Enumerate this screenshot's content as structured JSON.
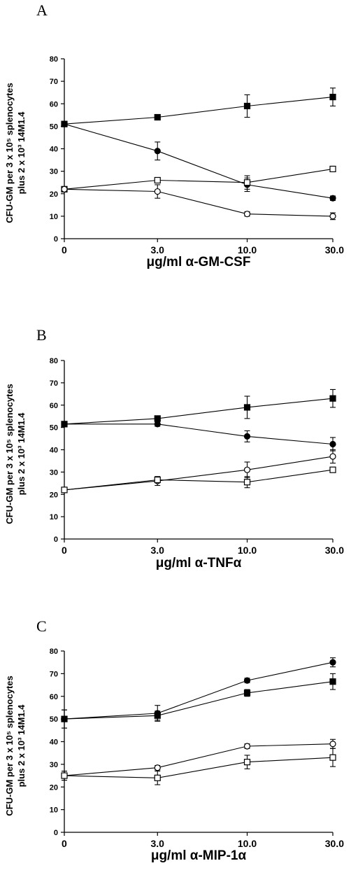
{
  "panels": [
    {
      "letter": "A",
      "chart_data": {
        "type": "line",
        "x": [
          "0",
          "3.0",
          "10.0",
          "30.0"
        ],
        "xlabel": "μg/ml α-GM-CSF",
        "ylabel_line1": "CFU-GM per 3 x 10⁵ splenocytes",
        "ylabel_line2": "plus 2 x 10³ 14M1.4",
        "ylim": [
          0,
          80
        ],
        "yticks": [
          0,
          10,
          20,
          30,
          40,
          50,
          60,
          70,
          80
        ],
        "series": [
          {
            "marker": "filled-square",
            "values": [
              51,
              54,
              59,
              63
            ],
            "errors": [
              0,
              0,
              5,
              4
            ]
          },
          {
            "marker": "filled-circle",
            "values": [
              51,
              39,
              24,
              18
            ],
            "errors": [
              0,
              4,
              3,
              1
            ]
          },
          {
            "marker": "open-square",
            "values": [
              22,
              26,
              25,
              31
            ],
            "errors": [
              0,
              1,
              3,
              1
            ]
          },
          {
            "marker": "open-circle",
            "values": [
              22,
              21,
              11,
              10
            ],
            "errors": [
              0,
              3,
              1,
              1.5
            ]
          }
        ]
      }
    },
    {
      "letter": "B",
      "chart_data": {
        "type": "line",
        "x": [
          "0",
          "3.0",
          "10.0",
          "30.0"
        ],
        "xlabel": "μg/ml α-TNFα",
        "ylabel_line1": "CFU-GM per 3 x 10⁵ splenocytes",
        "ylabel_line2": "plus 2 x 10³ 14M1.4",
        "ylim": [
          0,
          80
        ],
        "yticks": [
          0,
          10,
          20,
          30,
          40,
          50,
          60,
          70,
          80
        ],
        "series": [
          {
            "marker": "filled-square",
            "values": [
              51.5,
              54,
              59,
              63
            ],
            "errors": [
              0,
              0,
              5,
              4
            ]
          },
          {
            "marker": "filled-circle",
            "values": [
              51.5,
              51.5,
              46,
              42.5
            ],
            "errors": [
              0,
              1,
              2.5,
              3
            ]
          },
          {
            "marker": "open-circle",
            "values": [
              22,
              26,
              31,
              37
            ],
            "errors": [
              0,
              2,
              3.5,
              3
            ]
          },
          {
            "marker": "open-square",
            "values": [
              22,
              26.5,
              25.5,
              31
            ],
            "errors": [
              0,
              1,
              2.5,
              1
            ]
          }
        ]
      }
    },
    {
      "letter": "C",
      "chart_data": {
        "type": "line",
        "x": [
          "0",
          "3.0",
          "10.0",
          "30.0"
        ],
        "xlabel": "μg/ml α-MIP-1α",
        "ylabel_line1": "CFU-GM per 3 x 10⁵ splenocytes",
        "ylabel_line2": "plus 2 x 10³ 14M1.4",
        "ylim": [
          0,
          80
        ],
        "yticks": [
          0,
          10,
          20,
          30,
          40,
          50,
          60,
          70,
          80
        ],
        "series": [
          {
            "marker": "filled-circle",
            "values": [
              50,
              52.5,
              67,
              75
            ],
            "errors": [
              4,
              3.5,
              1,
              2
            ]
          },
          {
            "marker": "filled-square",
            "values": [
              50,
              51.5,
              61.5,
              66.5
            ],
            "errors": [
              4,
              2,
              1.5,
              3.5
            ]
          },
          {
            "marker": "open-circle",
            "values": [
              25,
              28.5,
              38,
              39
            ],
            "errors": [
              2,
              1,
              1,
              2
            ]
          },
          {
            "marker": "open-square",
            "values": [
              25,
              24,
              31,
              33
            ],
            "errors": [
              2,
              3,
              3,
              4
            ]
          }
        ]
      }
    }
  ]
}
